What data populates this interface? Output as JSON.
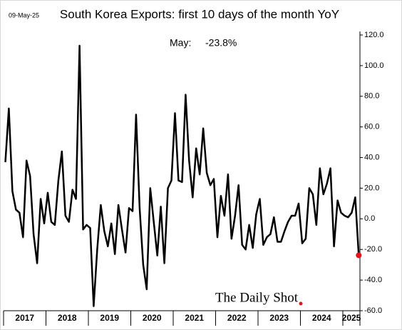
{
  "chart_data": {
    "type": "line",
    "title": "South Korea Exports: first 10 days of the month YoY",
    "date": "09-May-25",
    "annotation": "May:",
    "source": "The Daily Shot",
    "years": [
      2017,
      2018,
      2019,
      2020,
      2021,
      2022,
      2023,
      2024,
      2025
    ],
    "color": "#000000",
    "highlight_color": "#e8131a",
    "values": [
      37,
      72,
      18,
      6,
      4,
      -12,
      38,
      28,
      -10,
      -29,
      13,
      -3,
      17,
      -2,
      -4,
      25,
      44,
      2,
      -2,
      19,
      13,
      113,
      -7,
      -4,
      -6,
      -57,
      -20,
      9,
      -8,
      -18,
      -3,
      -23,
      9,
      -7,
      -22,
      7,
      5,
      68,
      7,
      -30,
      -46,
      20,
      -2,
      -24,
      8,
      -29,
      20,
      25,
      69,
      25,
      24,
      81,
      38,
      14,
      46,
      29,
      59,
      30,
      22,
      26,
      -12,
      15,
      2,
      29,
      -13,
      2,
      22,
      -17,
      -20,
      -4,
      -19,
      3,
      13,
      -17,
      -12,
      -10,
      1,
      -15,
      -15,
      -8,
      -2,
      2,
      2,
      10,
      -16,
      -13,
      20,
      16,
      -4,
      33,
      16,
      23,
      33,
      -18,
      12,
      4,
      2,
      1,
      4,
      14,
      -23.8
    ],
    "value_labels": [
      null,
      null,
      null,
      null,
      null,
      null,
      null,
      null,
      null,
      null,
      null,
      null,
      null,
      null,
      null,
      null,
      null,
      null,
      null,
      null,
      null,
      null,
      null,
      null,
      null,
      null,
      null,
      null,
      null,
      null,
      null,
      null,
      null,
      null,
      null,
      null,
      null,
      null,
      null,
      null,
      null,
      null,
      null,
      null,
      null,
      null,
      null,
      null,
      null,
      null,
      null,
      null,
      null,
      null,
      null,
      null,
      null,
      null,
      null,
      null,
      null,
      null,
      null,
      null,
      null,
      null,
      null,
      null,
      null,
      null,
      null,
      null,
      null,
      null,
      null,
      null,
      null,
      null,
      null,
      null,
      null,
      null,
      null,
      null,
      null,
      null,
      null,
      null,
      null,
      null,
      null,
      null,
      null,
      null,
      null,
      null,
      null,
      null,
      null,
      null,
      "-23.8%"
    ],
    "ylim": [
      -60,
      120
    ],
    "yticks": [
      {
        "value": -60,
        "label": "-60.0"
      },
      {
        "value": -40,
        "label": "-40.0"
      },
      {
        "value": -20,
        "label": "-20.0"
      },
      {
        "value": 0,
        "label": "0.0"
      },
      {
        "value": 20,
        "label": "20.0"
      },
      {
        "value": 40,
        "label": "40.0"
      },
      {
        "value": 60,
        "label": "60.0"
      },
      {
        "value": 80,
        "label": "80.0"
      },
      {
        "value": 100,
        "label": "100.0"
      },
      {
        "value": 120,
        "label": "120.0"
      }
    ],
    "grid": false
  }
}
